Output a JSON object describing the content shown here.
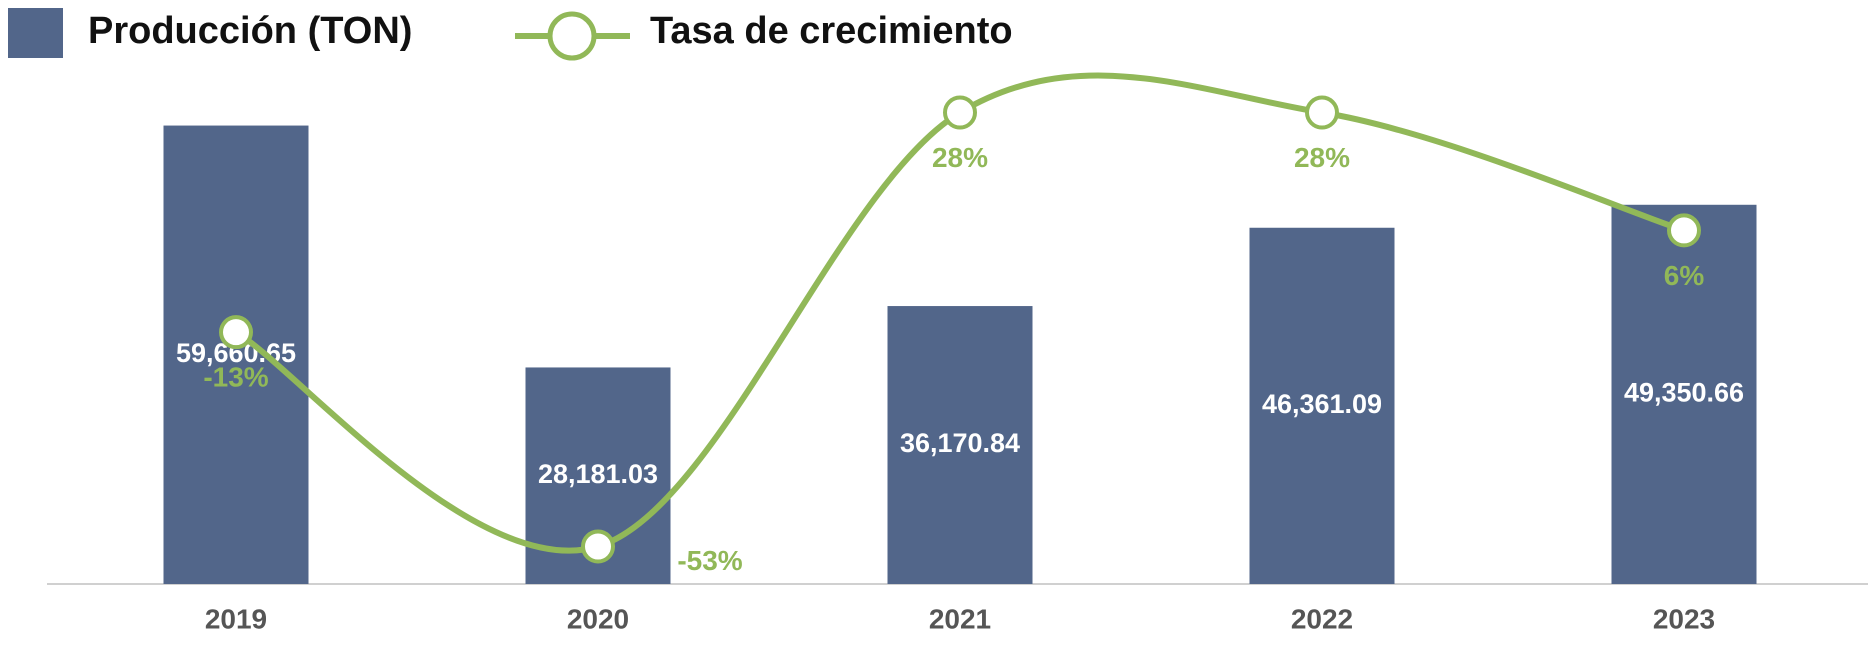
{
  "chart_data": {
    "type": "bar-line",
    "categories": [
      "2019",
      "2020",
      "2021",
      "2022",
      "2023"
    ],
    "series": [
      {
        "name": "Producción (TON)",
        "type": "bar",
        "color": "#52668a",
        "values": [
          59660.65,
          28181.03,
          36170.84,
          46361.09,
          49350.66
        ],
        "value_labels": [
          "59,660.65",
          "28,181.03",
          "36,170.84",
          "46,361.09",
          "49,350.66"
        ]
      },
      {
        "name": "Tasa de crecimiento",
        "type": "line",
        "axis": "y2",
        "color": "#91b858",
        "values": [
          -13,
          -53,
          28,
          28,
          6
        ],
        "value_labels": [
          "-13%",
          "-53%",
          "28%",
          "28%",
          "6%"
        ]
      }
    ],
    "ylim": [
      0,
      76000
    ],
    "y2lim": [
      -60,
      49
    ],
    "grid": false
  }
}
